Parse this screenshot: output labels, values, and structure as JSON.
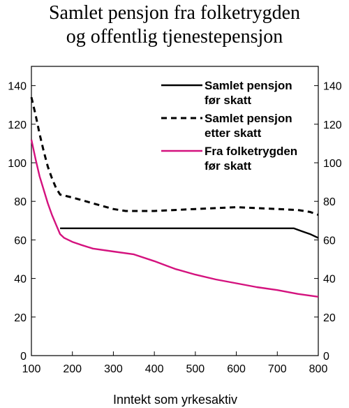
{
  "chart_data": {
    "type": "line",
    "title": [
      "Samlet pensjon fra folketrygden",
      "og offentlig tjenestepensjon"
    ],
    "xlabel": "Inntekt som yrkesaktiv",
    "ylabel": "",
    "xlim": [
      100,
      800
    ],
    "ylim": [
      0,
      150
    ],
    "xticks": [
      100,
      200,
      300,
      400,
      500,
      600,
      700,
      800
    ],
    "yticks": [
      0,
      20,
      40,
      60,
      80,
      100,
      120,
      140
    ],
    "secondary_y_axis": true,
    "grid": false,
    "legend_position": "top-right",
    "series": [
      {
        "name": "Samlet pensjon før skatt",
        "legend_lines": [
          "Samlet pensjon",
          "før skatt"
        ],
        "color": "#000000",
        "style": "solid",
        "x": [
          170,
          200,
          300,
          400,
          500,
          600,
          700,
          740,
          760,
          780,
          800
        ],
        "y": [
          66,
          66,
          66,
          66,
          66,
          66,
          66,
          66,
          64.5,
          63,
          61
        ]
      },
      {
        "name": "Samlet pensjon etter skatt",
        "legend_lines": [
          "Samlet pensjon",
          "etter skatt"
        ],
        "color": "#000000",
        "style": "dashed",
        "x": [
          100,
          110,
          120,
          130,
          140,
          150,
          160,
          170,
          180,
          200,
          250,
          300,
          330,
          400,
          450,
          500,
          550,
          600,
          650,
          700,
          750,
          780,
          800
        ],
        "y": [
          134,
          125,
          115,
          106,
          98,
          92,
          87,
          83.5,
          83,
          82,
          79,
          76,
          75,
          75,
          75.5,
          76,
          76.5,
          77,
          76.5,
          76,
          75.5,
          74.5,
          73
        ]
      },
      {
        "name": "Fra folketrygden før skatt",
        "legend_lines": [
          "Fra folketrygden",
          "før skatt"
        ],
        "color": "#d4127e",
        "style": "solid",
        "x": [
          100,
          110,
          120,
          130,
          140,
          150,
          160,
          170,
          180,
          200,
          220,
          250,
          300,
          350,
          400,
          450,
          500,
          550,
          600,
          650,
          700,
          750,
          800
        ],
        "y": [
          112,
          102,
          93,
          86,
          79,
          73,
          68,
          63,
          61,
          59,
          57.5,
          55.5,
          54,
          52.5,
          49,
          45,
          42,
          39.5,
          37.5,
          35.5,
          34,
          32,
          30.5
        ]
      }
    ]
  }
}
